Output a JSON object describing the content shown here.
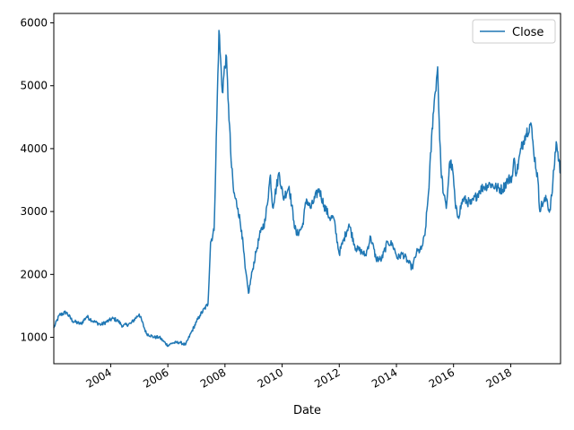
{
  "chart_data": {
    "type": "line",
    "title": "",
    "xlabel": "Date",
    "ylabel": "",
    "xlim": [
      "2002-01-04",
      "2019-09-30"
    ],
    "ylim": [
      580,
      6150
    ],
    "x_ticks": [
      "2004-01-01",
      "2006-01-01",
      "2008-01-01",
      "2010-01-01",
      "2012-01-01",
      "2014-01-01",
      "2016-01-01",
      "2018-01-01"
    ],
    "x_tick_labels": [
      "2004",
      "2006",
      "2008",
      "2010",
      "2012",
      "2014",
      "2016",
      "2018"
    ],
    "y_ticks": [
      1000,
      2000,
      3000,
      4000,
      5000,
      6000
    ],
    "y_tick_labels": [
      "1000",
      "2000",
      "3000",
      "4000",
      "5000",
      "6000"
    ],
    "grid": false,
    "legend_position": "top-right",
    "series": [
      {
        "name": "Close",
        "color": "#1f77b4",
        "x": [
          "2002-01-04",
          "2002-03-15",
          "2002-06-10",
          "2002-09-01",
          "2002-12-15",
          "2003-03-01",
          "2003-06-01",
          "2003-09-01",
          "2003-12-15",
          "2004-02-01",
          "2004-04-05",
          "2004-06-01",
          "2004-09-15",
          "2004-12-31",
          "2005-04-01",
          "2005-07-11",
          "2005-09-15",
          "2005-12-31",
          "2006-03-01",
          "2006-06-01",
          "2006-08-15",
          "2006-11-01",
          "2006-12-31",
          "2007-02-15",
          "2007-05-29",
          "2007-07-01",
          "2007-08-15",
          "2007-10-16",
          "2007-11-28",
          "2008-01-14",
          "2008-02-15",
          "2008-03-20",
          "2008-04-22",
          "2008-06-15",
          "2008-08-01",
          "2008-09-15",
          "2008-10-28",
          "2008-12-15",
          "2009-02-01",
          "2009-03-31",
          "2009-05-30",
          "2009-08-04",
          "2009-09-01",
          "2009-11-24",
          "2010-01-15",
          "2010-03-31",
          "2010-05-31",
          "2010-07-02",
          "2010-09-15",
          "2010-11-08",
          "2010-12-31",
          "2011-04-18",
          "2011-06-20",
          "2011-08-31",
          "2011-10-21",
          "2011-12-31",
          "2012-02-24",
          "2012-05-04",
          "2012-07-31",
          "2012-09-26",
          "2012-12-03",
          "2013-02-06",
          "2013-04-15",
          "2013-06-25",
          "2013-09-12",
          "2013-11-15",
          "2014-01-15",
          "2014-03-20",
          "2014-05-20",
          "2014-07-22",
          "2014-09-15",
          "2014-11-15",
          "2014-12-31",
          "2015-02-15",
          "2015-04-15",
          "2015-06-12",
          "2015-07-08",
          "2015-07-24",
          "2015-08-26",
          "2015-09-30",
          "2015-11-15",
          "2015-12-22",
          "2016-01-28",
          "2016-03-01",
          "2016-05-01",
          "2016-08-15",
          "2016-11-28",
          "2017-01-15",
          "2017-04-15",
          "2017-07-01",
          "2017-09-15",
          "2017-11-20",
          "2018-01-24",
          "2018-02-09",
          "2018-03-15",
          "2018-05-15",
          "2018-06-30",
          "2018-09-15",
          "2018-10-18",
          "2018-12-15",
          "2019-01-03",
          "2019-02-25",
          "2019-04-08",
          "2019-05-10",
          "2019-06-10",
          "2019-08-06",
          "2019-09-30"
        ],
        "y": [
          1150,
          1350,
          1400,
          1260,
          1210,
          1330,
          1250,
          1200,
          1270,
          1300,
          1260,
          1180,
          1220,
          1370,
          1060,
          1000,
          1000,
          870,
          910,
          920,
          880,
          1090,
          1240,
          1350,
          1530,
          2510,
          2700,
          5880,
          4900,
          5490,
          4700,
          3800,
          3300,
          3050,
          2700,
          2100,
          1700,
          2050,
          2350,
          2670,
          2850,
          3580,
          3070,
          3620,
          3210,
          3400,
          2850,
          2630,
          2750,
          3200,
          3050,
          3360,
          3100,
          2900,
          2900,
          2330,
          2540,
          2800,
          2410,
          2380,
          2300,
          2600,
          2250,
          2240,
          2520,
          2470,
          2260,
          2330,
          2220,
          2100,
          2350,
          2400,
          2620,
          3300,
          4550,
          5300,
          4150,
          3700,
          3280,
          3050,
          3800,
          3650,
          3050,
          2920,
          3200,
          3120,
          3330,
          3390,
          3440,
          3380,
          3350,
          3490,
          3560,
          3830,
          3600,
          4000,
          4200,
          4410,
          4000,
          3500,
          3050,
          3150,
          3200,
          2990,
          3250,
          4110,
          3610
        ]
      }
    ]
  }
}
